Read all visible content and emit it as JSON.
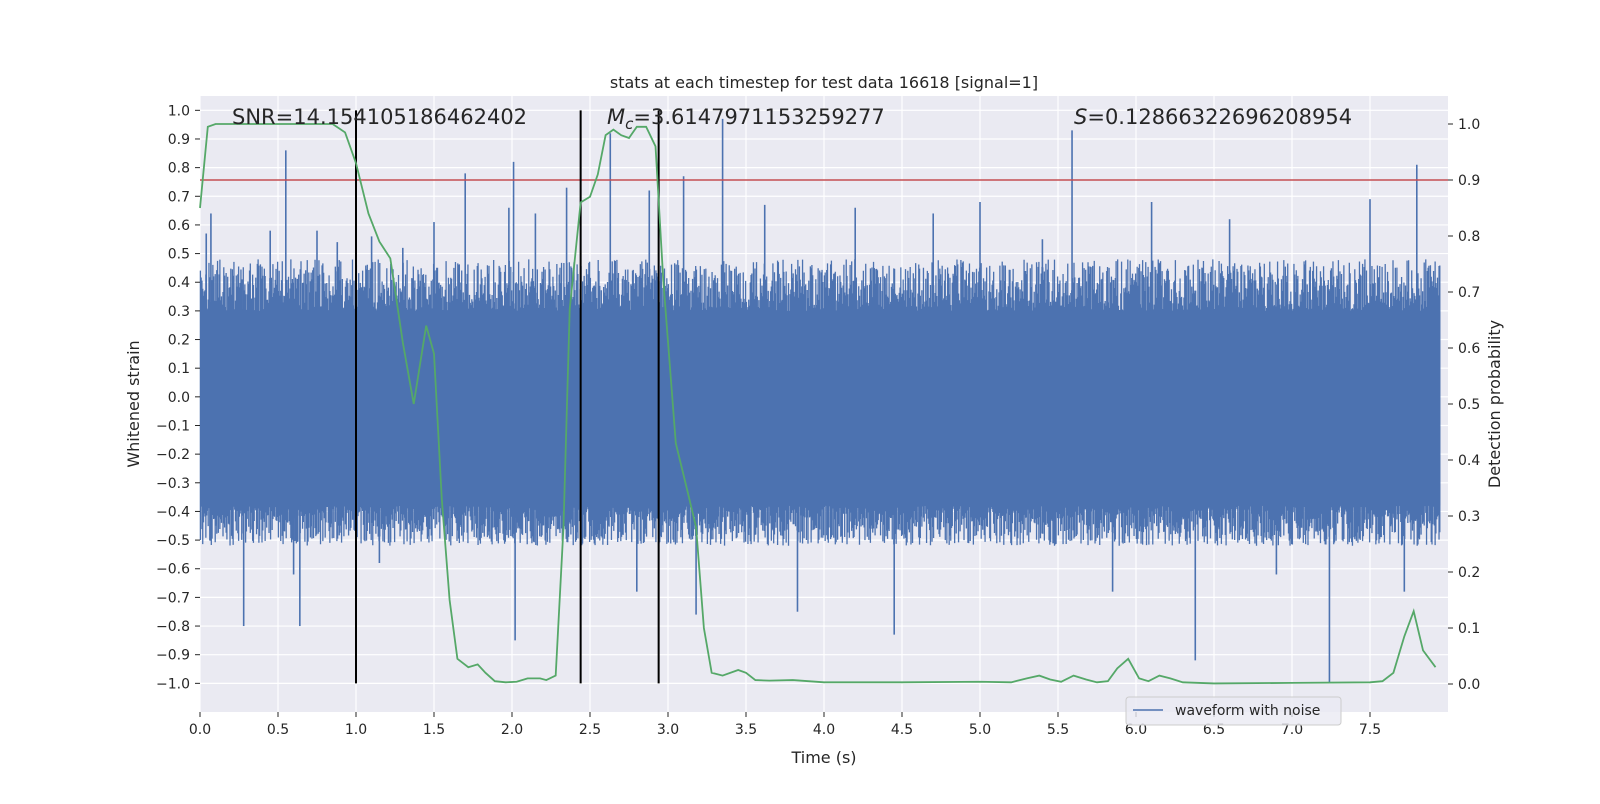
{
  "chart_data": {
    "type": "line",
    "title": "stats at each timestep for test data 16618 [signal=1]",
    "xlabel": "Time (s)",
    "ylabel_left": "Whitened strain",
    "ylabel_right": "Detection probability",
    "xlim": [
      0.0,
      8.0
    ],
    "ylim_left": [
      -1.1,
      1.05
    ],
    "ylim_right": [
      -0.05,
      1.05
    ],
    "xticks": [
      "0.0",
      "0.5",
      "1.0",
      "1.5",
      "2.0",
      "2.5",
      "3.0",
      "3.5",
      "4.0",
      "4.5",
      "5.0",
      "5.5",
      "6.0",
      "6.5",
      "7.0",
      "7.5"
    ],
    "xtick_values": [
      0.0,
      0.5,
      1.0,
      1.5,
      2.0,
      2.5,
      3.0,
      3.5,
      4.0,
      4.5,
      5.0,
      5.5,
      6.0,
      6.5,
      7.0,
      7.5
    ],
    "yticks_left": [
      "−1.0",
      "−0.9",
      "−0.8",
      "−0.7",
      "−0.6",
      "−0.5",
      "−0.4",
      "−0.3",
      "−0.2",
      "−0.1",
      "0.0",
      "0.1",
      "0.2",
      "0.3",
      "0.4",
      "0.5",
      "0.6",
      "0.7",
      "0.8",
      "0.9",
      "1.0"
    ],
    "ytick_values_left": [
      -1.0,
      -0.9,
      -0.8,
      -0.7,
      -0.6,
      -0.5,
      -0.4,
      -0.3,
      -0.2,
      -0.1,
      0.0,
      0.1,
      0.2,
      0.3,
      0.4,
      0.5,
      0.6,
      0.7,
      0.8,
      0.9,
      1.0
    ],
    "yticks_right": [
      "0.0",
      "0.1",
      "0.2",
      "0.3",
      "0.4",
      "0.5",
      "0.6",
      "0.7",
      "0.8",
      "0.9",
      "1.0"
    ],
    "ytick_values_right": [
      0.0,
      0.1,
      0.2,
      0.3,
      0.4,
      0.5,
      0.6,
      0.7,
      0.8,
      0.9,
      1.0
    ],
    "grid": true,
    "legend_position": "lower-right",
    "annotations": {
      "snr": "SNR=14.154105186462402",
      "mc_symbol": "M",
      "mc_subscript": "c",
      "mc_value": "=3.6147971153259277",
      "s_symbol": "S",
      "s_value": "=0.12866322696208954"
    },
    "vertical_lines": [
      1.0,
      2.44,
      2.94
    ],
    "threshold": 0.9,
    "waveform": {
      "name": "waveform with noise",
      "color": "#4c72b0",
      "band_hi": 0.3,
      "band_lo": -0.38,
      "spikes": [
        [
          0.04,
          0.57
        ],
        [
          0.07,
          0.64
        ],
        [
          0.1,
          -0.45
        ],
        [
          0.27,
          0.41
        ],
        [
          0.28,
          -0.8
        ],
        [
          0.45,
          0.58
        ],
        [
          0.55,
          0.86
        ],
        [
          0.6,
          -0.62
        ],
        [
          0.64,
          -0.8
        ],
        [
          0.75,
          0.58
        ],
        [
          0.88,
          0.54
        ],
        [
          1.0,
          0.81
        ],
        [
          1.1,
          0.56
        ],
        [
          1.15,
          -0.58
        ],
        [
          1.3,
          0.52
        ],
        [
          1.5,
          0.61
        ],
        [
          1.7,
          0.78
        ],
        [
          1.98,
          0.66
        ],
        [
          2.01,
          0.82
        ],
        [
          2.02,
          -0.85
        ],
        [
          2.15,
          0.64
        ],
        [
          2.35,
          0.73
        ],
        [
          2.63,
          0.92
        ],
        [
          2.8,
          -0.68
        ],
        [
          2.88,
          0.72
        ],
        [
          3.1,
          0.77
        ],
        [
          3.18,
          -0.76
        ],
        [
          3.35,
          0.97
        ],
        [
          3.62,
          0.67
        ],
        [
          3.83,
          -0.75
        ],
        [
          4.2,
          0.66
        ],
        [
          4.45,
          -0.83
        ],
        [
          4.7,
          0.64
        ],
        [
          5.0,
          0.68
        ],
        [
          5.4,
          0.55
        ],
        [
          5.59,
          0.93
        ],
        [
          5.85,
          -0.68
        ],
        [
          6.1,
          0.68
        ],
        [
          6.38,
          -0.92
        ],
        [
          6.6,
          0.62
        ],
        [
          6.9,
          -0.62
        ],
        [
          7.24,
          -1.0
        ],
        [
          7.5,
          0.69
        ],
        [
          7.72,
          -0.68
        ],
        [
          7.8,
          0.81
        ]
      ]
    },
    "probability": {
      "name": "detection probability",
      "color": "#55a868",
      "points": [
        [
          0.0,
          0.85
        ],
        [
          0.05,
          0.995
        ],
        [
          0.1,
          1.0
        ],
        [
          0.3,
          1.0
        ],
        [
          0.5,
          1.0
        ],
        [
          0.7,
          1.0
        ],
        [
          0.85,
          1.0
        ],
        [
          0.93,
          0.985
        ],
        [
          1.0,
          0.93
        ],
        [
          1.08,
          0.84
        ],
        [
          1.15,
          0.79
        ],
        [
          1.22,
          0.76
        ],
        [
          1.3,
          0.61
        ],
        [
          1.37,
          0.5
        ],
        [
          1.45,
          0.64
        ],
        [
          1.5,
          0.59
        ],
        [
          1.55,
          0.33
        ],
        [
          1.6,
          0.15
        ],
        [
          1.65,
          0.045
        ],
        [
          1.72,
          0.03
        ],
        [
          1.78,
          0.035
        ],
        [
          1.83,
          0.02
        ],
        [
          1.89,
          0.005
        ],
        [
          1.96,
          0.003
        ],
        [
          2.03,
          0.004
        ],
        [
          2.1,
          0.01
        ],
        [
          2.18,
          0.01
        ],
        [
          2.22,
          0.007
        ],
        [
          2.28,
          0.015
        ],
        [
          2.33,
          0.28
        ],
        [
          2.37,
          0.67
        ],
        [
          2.44,
          0.86
        ],
        [
          2.5,
          0.87
        ],
        [
          2.55,
          0.91
        ],
        [
          2.6,
          0.98
        ],
        [
          2.65,
          0.99
        ],
        [
          2.7,
          0.98
        ],
        [
          2.75,
          0.975
        ],
        [
          2.8,
          0.995
        ],
        [
          2.86,
          0.995
        ],
        [
          2.92,
          0.96
        ],
        [
          2.97,
          0.72
        ],
        [
          3.05,
          0.43
        ],
        [
          3.12,
          0.35
        ],
        [
          3.18,
          0.28
        ],
        [
          3.23,
          0.1
        ],
        [
          3.28,
          0.02
        ],
        [
          3.35,
          0.015
        ],
        [
          3.45,
          0.025
        ],
        [
          3.5,
          0.02
        ],
        [
          3.56,
          0.007
        ],
        [
          3.65,
          0.006
        ],
        [
          3.8,
          0.007
        ],
        [
          4.0,
          0.003
        ],
        [
          4.5,
          0.003
        ],
        [
          5.0,
          0.004
        ],
        [
          5.2,
          0.003
        ],
        [
          5.3,
          0.01
        ],
        [
          5.38,
          0.015
        ],
        [
          5.45,
          0.008
        ],
        [
          5.52,
          0.004
        ],
        [
          5.6,
          0.015
        ],
        [
          5.68,
          0.008
        ],
        [
          5.75,
          0.003
        ],
        [
          5.82,
          0.005
        ],
        [
          5.88,
          0.028
        ],
        [
          5.95,
          0.045
        ],
        [
          6.02,
          0.01
        ],
        [
          6.08,
          0.005
        ],
        [
          6.15,
          0.015
        ],
        [
          6.22,
          0.01
        ],
        [
          6.3,
          0.003
        ],
        [
          6.5,
          0.001
        ],
        [
          7.0,
          0.002
        ],
        [
          7.5,
          0.003
        ],
        [
          7.58,
          0.005
        ],
        [
          7.65,
          0.02
        ],
        [
          7.72,
          0.085
        ],
        [
          7.78,
          0.13
        ],
        [
          7.84,
          0.06
        ],
        [
          7.92,
          0.03
        ]
      ]
    },
    "threshold_color": "#c44e52"
  }
}
